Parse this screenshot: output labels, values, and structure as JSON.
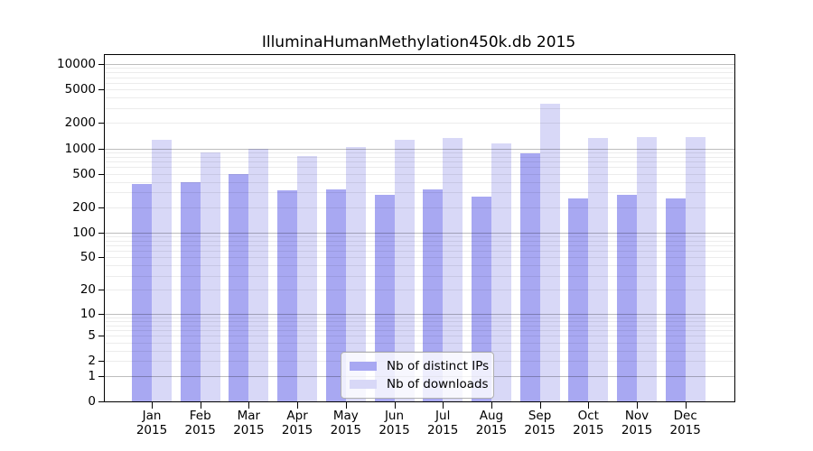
{
  "chart_data": {
    "type": "bar",
    "title": "IlluminaHumanMethylation450k.db 2015",
    "year": "2015",
    "categories": [
      "Jan",
      "Feb",
      "Mar",
      "Apr",
      "May",
      "Jun",
      "Jul",
      "Aug",
      "Sep",
      "Oct",
      "Nov",
      "Dec"
    ],
    "series": [
      {
        "name": "Nb of distinct IPs",
        "color": "#a8a8f2",
        "values": [
          375,
          400,
          490,
          315,
          325,
          280,
          325,
          270,
          870,
          255,
          280,
          255
        ]
      },
      {
        "name": "Nb of downloads",
        "color": "#d8d8f7",
        "values": [
          1260,
          900,
          985,
          820,
          1045,
          1260,
          1340,
          1150,
          3350,
          1340,
          1370,
          1350
        ]
      }
    ],
    "y_ticks": [
      0,
      1,
      2,
      5,
      10,
      20,
      50,
      100,
      200,
      500,
      1000,
      2000,
      5000,
      10000
    ],
    "y_scale": "log10(value+1), 0 at baseline",
    "ylim": [
      0,
      12800
    ],
    "grid": "horizontal, major at powers of 10, minor log subdivisions, drawn over bars",
    "legend_position": "lower center inside plot",
    "xlabel": "",
    "ylabel": ""
  }
}
